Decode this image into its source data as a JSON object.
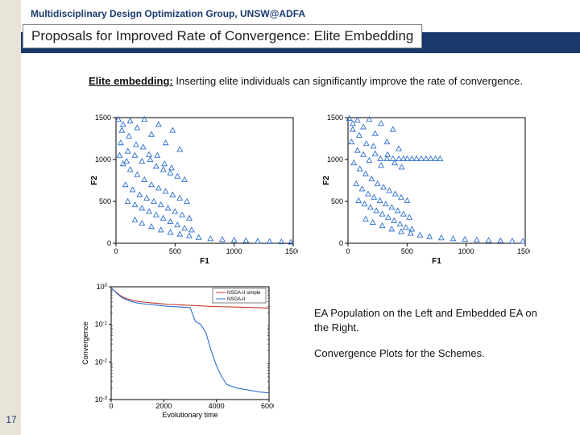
{
  "header": "Multidisciplinary Design Optimization Group, UNSW@ADFA",
  "title": "Proposals for Improved Rate of Convergence: Elite Embedding",
  "body_bold": "Elite embedding:",
  "body_rest": " Inserting elite individuals can significantly improve the rate of convergence.",
  "caption1": "EA Population on the Left and Embedded EA on the Right.",
  "caption2": "Convergence Plots for the Schemes.",
  "page_num": "17",
  "colors": {
    "triangle": "#2e6fd1",
    "axis": "#000000",
    "line_red": "#c0392b",
    "line_blue": "#2e6fd1",
    "box": "#000000"
  },
  "scatter_left": {
    "type": "scatter",
    "xlabel": "F1",
    "ylabel": "F2",
    "xlim": [
      0,
      1500
    ],
    "ylim": [
      0,
      1500
    ],
    "xticks": [
      0,
      500,
      1000,
      1500
    ],
    "yticks": [
      0,
      500,
      1000,
      1500
    ],
    "points": [
      [
        20,
        1480
      ],
      [
        60,
        1420
      ],
      [
        120,
        1460
      ],
      [
        180,
        1380
      ],
      [
        240,
        1480
      ],
      [
        300,
        1300
      ],
      [
        360,
        1420
      ],
      [
        420,
        1200
      ],
      [
        480,
        1350
      ],
      [
        540,
        1120
      ],
      [
        40,
        1200
      ],
      [
        100,
        1100
      ],
      [
        160,
        1050
      ],
      [
        220,
        980
      ],
      [
        280,
        1060
      ],
      [
        340,
        920
      ],
      [
        400,
        880
      ],
      [
        460,
        840
      ],
      [
        520,
        800
      ],
      [
        580,
        760
      ],
      [
        60,
        950
      ],
      [
        120,
        880
      ],
      [
        180,
        820
      ],
      [
        240,
        760
      ],
      [
        300,
        700
      ],
      [
        360,
        660
      ],
      [
        420,
        620
      ],
      [
        480,
        580
      ],
      [
        540,
        540
      ],
      [
        600,
        500
      ],
      [
        80,
        700
      ],
      [
        140,
        640
      ],
      [
        200,
        580
      ],
      [
        260,
        540
      ],
      [
        320,
        500
      ],
      [
        380,
        460
      ],
      [
        440,
        420
      ],
      [
        500,
        380
      ],
      [
        560,
        340
      ],
      [
        620,
        300
      ],
      [
        100,
        500
      ],
      [
        160,
        460
      ],
      [
        220,
        420
      ],
      [
        280,
        380
      ],
      [
        340,
        340
      ],
      [
        400,
        300
      ],
      [
        460,
        260
      ],
      [
        520,
        220
      ],
      [
        580,
        180
      ],
      [
        640,
        160
      ],
      [
        160,
        280
      ],
      [
        220,
        240
      ],
      [
        300,
        200
      ],
      [
        380,
        160
      ],
      [
        460,
        130
      ],
      [
        540,
        110
      ],
      [
        620,
        90
      ],
      [
        700,
        70
      ],
      [
        800,
        55
      ],
      [
        900,
        45
      ],
      [
        1000,
        38
      ],
      [
        1100,
        32
      ],
      [
        1200,
        26
      ],
      [
        1300,
        22
      ],
      [
        1400,
        18
      ],
      [
        1480,
        15
      ],
      [
        50,
        1350
      ],
      [
        110,
        1280
      ],
      [
        170,
        1180
      ],
      [
        230,
        1150
      ],
      [
        290,
        1000
      ],
      [
        350,
        1050
      ],
      [
        410,
        950
      ],
      [
        470,
        900
      ],
      [
        30,
        1050
      ],
      [
        90,
        980
      ]
    ]
  },
  "scatter_right": {
    "type": "scatter",
    "xlabel": "F1",
    "ylabel": "F2",
    "xlim": [
      0,
      1500
    ],
    "ylim": [
      0,
      1500
    ],
    "xticks": [
      0,
      500,
      1000,
      1500
    ],
    "yticks": [
      0,
      500,
      1000,
      1500
    ],
    "points": [
      [
        10,
        1490
      ],
      [
        40,
        1430
      ],
      [
        80,
        1470
      ],
      [
        130,
        1390
      ],
      [
        180,
        1480
      ],
      [
        230,
        1310
      ],
      [
        280,
        1430
      ],
      [
        330,
        1210
      ],
      [
        380,
        1360
      ],
      [
        430,
        1130
      ],
      [
        30,
        1210
      ],
      [
        80,
        1110
      ],
      [
        130,
        1060
      ],
      [
        180,
        990
      ],
      [
        230,
        1070
      ],
      [
        280,
        930
      ],
      [
        330,
        1010
      ],
      [
        380,
        1010
      ],
      [
        430,
        1010
      ],
      [
        470,
        1010
      ],
      [
        500,
        1010
      ],
      [
        540,
        1010
      ],
      [
        580,
        1010
      ],
      [
        620,
        1010
      ],
      [
        660,
        1010
      ],
      [
        700,
        1010
      ],
      [
        740,
        1010
      ],
      [
        780,
        1010
      ],
      [
        50,
        960
      ],
      [
        100,
        890
      ],
      [
        150,
        830
      ],
      [
        200,
        770
      ],
      [
        250,
        710
      ],
      [
        300,
        670
      ],
      [
        350,
        630
      ],
      [
        400,
        590
      ],
      [
        450,
        550
      ],
      [
        500,
        510
      ],
      [
        70,
        710
      ],
      [
        120,
        650
      ],
      [
        170,
        590
      ],
      [
        220,
        550
      ],
      [
        270,
        510
      ],
      [
        320,
        470
      ],
      [
        370,
        430
      ],
      [
        420,
        390
      ],
      [
        470,
        350
      ],
      [
        520,
        310
      ],
      [
        90,
        510
      ],
      [
        140,
        470
      ],
      [
        190,
        430
      ],
      [
        240,
        390
      ],
      [
        290,
        350
      ],
      [
        340,
        310
      ],
      [
        390,
        270
      ],
      [
        440,
        230
      ],
      [
        490,
        190
      ],
      [
        540,
        170
      ],
      [
        150,
        290
      ],
      [
        210,
        250
      ],
      [
        290,
        210
      ],
      [
        370,
        170
      ],
      [
        450,
        140
      ],
      [
        530,
        120
      ],
      [
        610,
        100
      ],
      [
        690,
        80
      ],
      [
        790,
        65
      ],
      [
        890,
        55
      ],
      [
        990,
        48
      ],
      [
        1090,
        42
      ],
      [
        1190,
        36
      ],
      [
        1290,
        32
      ],
      [
        1390,
        28
      ],
      [
        1480,
        25
      ],
      [
        40,
        1360
      ],
      [
        95,
        1290
      ],
      [
        155,
        1190
      ],
      [
        215,
        1160
      ],
      [
        275,
        1010
      ],
      [
        335,
        1060
      ],
      [
        395,
        960
      ],
      [
        455,
        910
      ]
    ]
  },
  "convergence": {
    "type": "line-log",
    "xlabel": "Evolutionary time",
    "ylabel": "Convergence",
    "xlim": [
      0,
      6000
    ],
    "xticks": [
      0,
      2000,
      4000,
      6000
    ],
    "xtick_labels": [
      "0",
      "2000",
      "4000",
      "6000"
    ],
    "yticks_log": [
      -3,
      -2,
      -1,
      0
    ],
    "legend": [
      "NSGA-II simple",
      "NSGA-II"
    ],
    "series_red": [
      [
        0,
        0.95
      ],
      [
        200,
        0.7
      ],
      [
        400,
        0.55
      ],
      [
        600,
        0.48
      ],
      [
        800,
        0.44
      ],
      [
        1000,
        0.41
      ],
      [
        1400,
        0.38
      ],
      [
        1800,
        0.36
      ],
      [
        2200,
        0.34
      ],
      [
        2600,
        0.33
      ],
      [
        3000,
        0.32
      ],
      [
        3400,
        0.31
      ],
      [
        3800,
        0.3
      ],
      [
        4200,
        0.295
      ],
      [
        4600,
        0.29
      ],
      [
        5000,
        0.285
      ],
      [
        5400,
        0.28
      ],
      [
        5800,
        0.275
      ],
      [
        6000,
        0.27
      ]
    ],
    "series_blue": [
      [
        0,
        0.95
      ],
      [
        200,
        0.68
      ],
      [
        400,
        0.52
      ],
      [
        600,
        0.45
      ],
      [
        800,
        0.4
      ],
      [
        1000,
        0.37
      ],
      [
        1400,
        0.34
      ],
      [
        1800,
        0.32
      ],
      [
        2200,
        0.3
      ],
      [
        2600,
        0.29
      ],
      [
        3000,
        0.28
      ],
      [
        3200,
        0.12
      ],
      [
        3400,
        0.1
      ],
      [
        3600,
        0.06
      ],
      [
        3800,
        0.02
      ],
      [
        4000,
        0.008
      ],
      [
        4200,
        0.004
      ],
      [
        4400,
        0.0025
      ],
      [
        4800,
        0.002
      ],
      [
        5200,
        0.0018
      ],
      [
        5600,
        0.0016
      ],
      [
        6000,
        0.0015
      ]
    ]
  }
}
